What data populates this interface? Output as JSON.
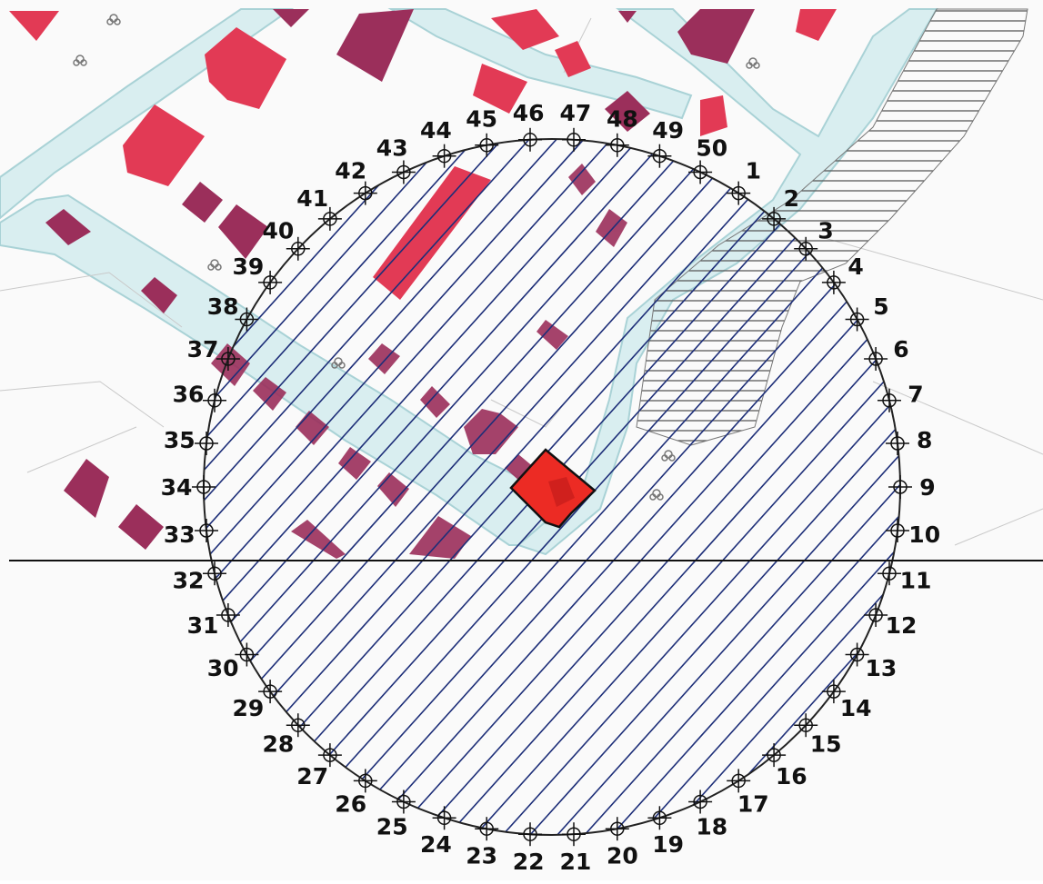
{
  "map": {
    "colors": {
      "background": "#fafafa",
      "road_fill": "#d9eef0",
      "road_edge": "#a9d2d6",
      "building_highlight": "#e23a55",
      "building_dark": "#9b2f5b",
      "building_text": "#5a1a30",
      "hatch_blue": "#1d2e78",
      "hatch_grey": "#555555",
      "target_fill": "#ec2b24",
      "target_inner": "#c41d1b",
      "circle_stroke": "#222222",
      "axis_line": "#111111"
    },
    "ring": {
      "point_count": 50,
      "first_point_label": "1",
      "numbering_direction": "clockwise",
      "point_marker": "crosshair-circle"
    },
    "points": [
      "1",
      "2",
      "3",
      "4",
      "5",
      "6",
      "7",
      "8",
      "9",
      "10",
      "11",
      "12",
      "13",
      "14",
      "15",
      "16",
      "17",
      "18",
      "19",
      "20",
      "21",
      "22",
      "23",
      "24",
      "25",
      "26",
      "27",
      "28",
      "29",
      "30",
      "31",
      "32",
      "33",
      "34",
      "35",
      "36",
      "37",
      "38",
      "39",
      "40",
      "41",
      "42",
      "43",
      "44",
      "45",
      "46",
      "47",
      "48",
      "49",
      "50"
    ],
    "area_hatch": "diagonal-lines",
    "feature_hatch": "horizontal-lines",
    "tree_icon": "tree-icon",
    "target_icon": "target-building-icon"
  }
}
